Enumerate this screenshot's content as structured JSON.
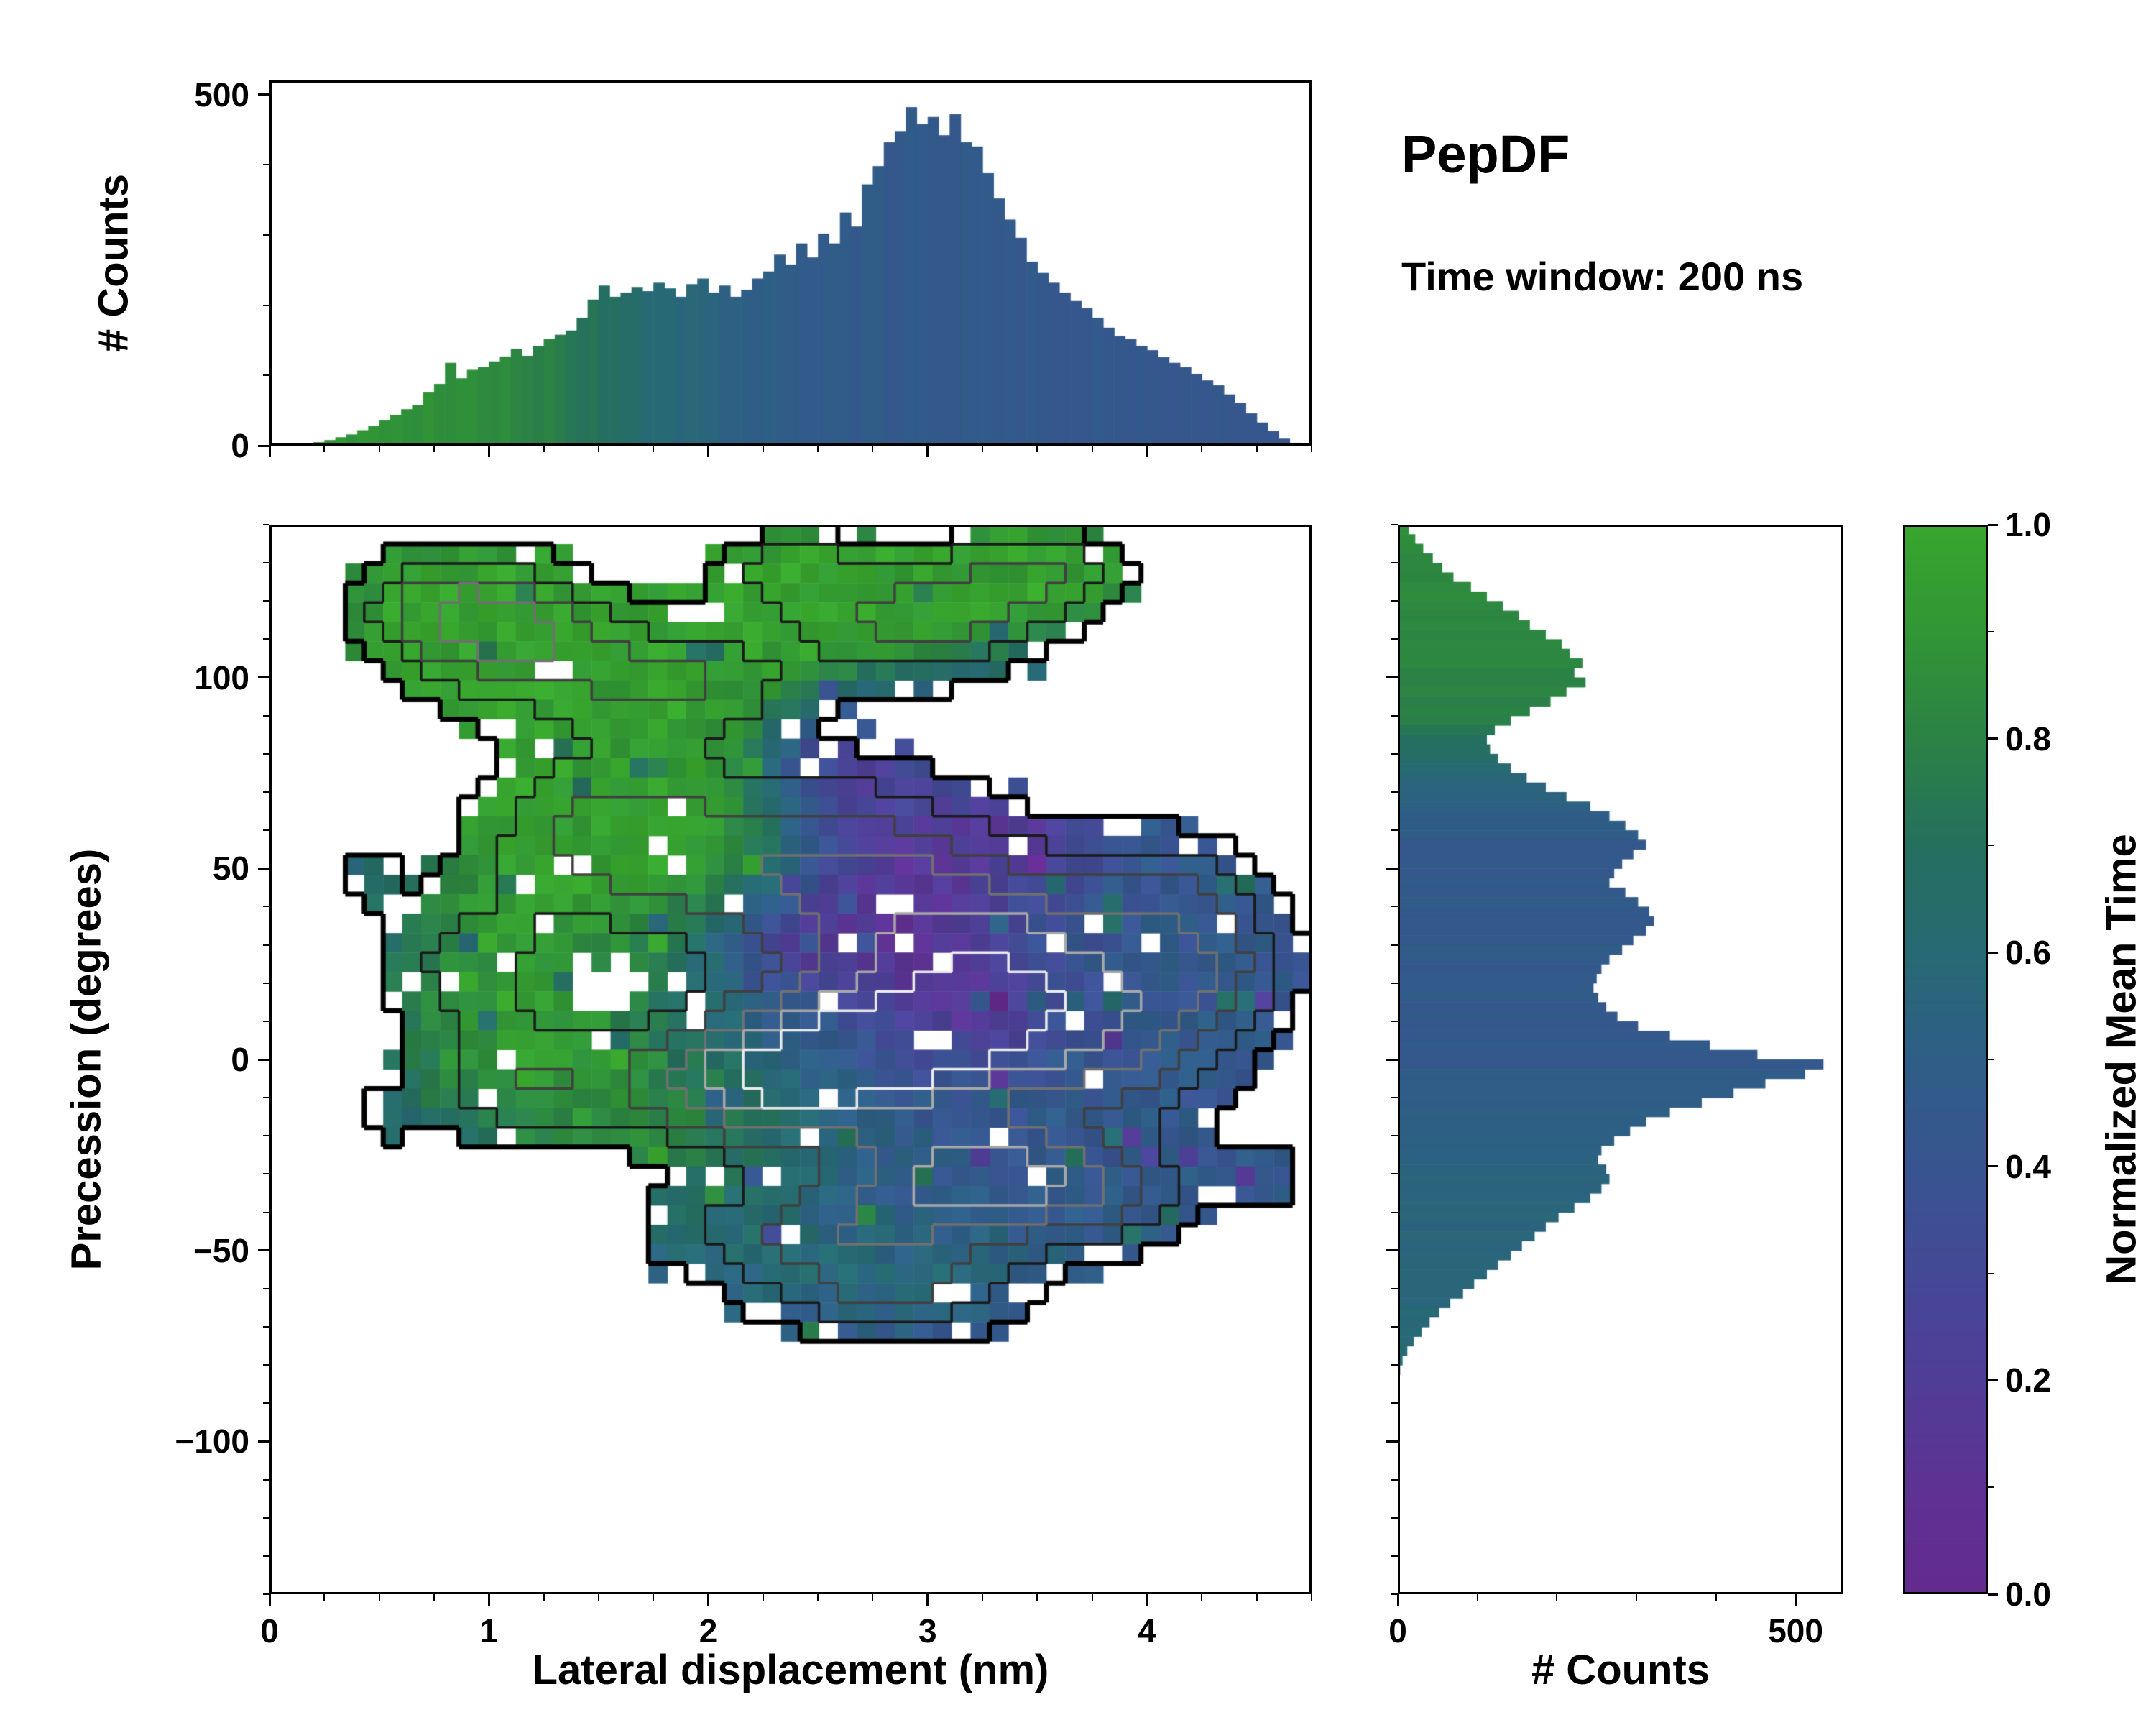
{
  "title": "PepDF",
  "subtitle": "Time window: 200 ns",
  "axes": {
    "main": {
      "xlabel": "Lateral displacement (nm)",
      "ylabel": "Precession (degrees)",
      "xlim": [
        0,
        4.75
      ],
      "ylim": [
        -140,
        140
      ],
      "xticks": [
        0,
        1,
        2,
        3,
        4
      ],
      "xtick_labels": [
        "0",
        "1",
        "2",
        "3",
        "4"
      ],
      "xminor_step": 0.25,
      "yticks": [
        -100,
        -50,
        0,
        50,
        100
      ],
      "ytick_labels": [
        "−100",
        "−50",
        "0",
        "50",
        "100"
      ],
      "yminor_step": 10
    },
    "top": {
      "ylabel": "# Counts",
      "ylim": [
        0,
        520
      ],
      "yticks": [
        0,
        500
      ],
      "ytick_labels": [
        "0",
        "500"
      ],
      "yminor_step": 100
    },
    "right": {
      "xlabel": "# Counts",
      "xlim": [
        0,
        560
      ],
      "xticks": [
        0,
        500
      ],
      "xtick_labels": [
        "0",
        "500"
      ],
      "xminor_step": 100
    },
    "colorbar": {
      "label": "Normalized Mean Time",
      "lim": [
        0,
        1
      ],
      "ticks": [
        0,
        0.2,
        0.4,
        0.6,
        0.8,
        1.0
      ],
      "tick_labels": [
        "0.0",
        "0.2",
        "0.4",
        "0.6",
        "0.8",
        "1.0"
      ],
      "minor_step": 0.1
    }
  },
  "colormap": {
    "stops": [
      [
        0.0,
        "#652a8e"
      ],
      [
        0.12,
        "#5b3494"
      ],
      [
        0.25,
        "#4a4397"
      ],
      [
        0.38,
        "#3a5292"
      ],
      [
        0.5,
        "#2e5e86"
      ],
      [
        0.6,
        "#276a74"
      ],
      [
        0.7,
        "#256f5e"
      ],
      [
        0.8,
        "#2b8245"
      ],
      [
        0.9,
        "#319635"
      ],
      [
        1.0,
        "#38a62d"
      ]
    ]
  },
  "chart_data": {
    "type": "heatmap",
    "title": "PepDF",
    "subtitle": "Time window: 200 ns",
    "xlabel": "Lateral displacement (nm)",
    "ylabel": "Precession (degrees)",
    "color_label": "Normalized Mean Time",
    "xlim": [
      0,
      4.75
    ],
    "ylim": [
      -140,
      140
    ],
    "color_range": [
      0,
      1
    ],
    "grid": {
      "nx": 55,
      "ny": 55
    },
    "support_threshold": 0.17,
    "noise_amp": 0.12,
    "hole_fraction": 0.035,
    "contour_levels": [
      0.17,
      0.35,
      0.55,
      0.75,
      0.95,
      1.15
    ],
    "contour_colors": [
      "#000000",
      "#1a1a1a",
      "#404040",
      "#707070",
      "#a8a8a8",
      "#ebebeb"
    ],
    "contour_widths": [
      7,
      3.5,
      3.5,
      3.5,
      3.5,
      3.5
    ],
    "density_blobs": [
      [
        0.85,
        120,
        0.45,
        14,
        0.55
      ],
      [
        1.15,
        108,
        0.55,
        16,
        0.6
      ],
      [
        1.9,
        98,
        0.5,
        14,
        0.5
      ],
      [
        2.95,
        115,
        0.55,
        16,
        0.62
      ],
      [
        3.5,
        127,
        0.4,
        12,
        0.5
      ],
      [
        2.35,
        128,
        0.35,
        10,
        0.4
      ],
      [
        1.5,
        60,
        0.55,
        24,
        0.55
      ],
      [
        2.5,
        50,
        0.8,
        26,
        0.7
      ],
      [
        3.3,
        28,
        0.7,
        24,
        0.8
      ],
      [
        2.9,
        2,
        0.75,
        20,
        1.0
      ],
      [
        2.2,
        -6,
        0.6,
        18,
        0.85
      ],
      [
        1.15,
        -6,
        0.45,
        16,
        0.5
      ],
      [
        0.9,
        25,
        0.4,
        20,
        0.4
      ],
      [
        3.2,
        -30,
        0.55,
        14,
        0.85
      ],
      [
        2.6,
        -45,
        0.8,
        14,
        0.6
      ],
      [
        3.9,
        8,
        0.5,
        26,
        0.55
      ],
      [
        4.35,
        25,
        0.35,
        18,
        0.4
      ],
      [
        2.85,
        -62,
        0.6,
        12,
        0.45
      ],
      [
        3.8,
        -35,
        0.45,
        14,
        0.45
      ],
      [
        4.1,
        45,
        0.35,
        16,
        0.35
      ],
      [
        0.45,
        48,
        0.15,
        8,
        0.22
      ],
      [
        0.55,
        -15,
        0.15,
        8,
        0.22
      ],
      [
        4.55,
        -30,
        0.2,
        10,
        0.25
      ]
    ],
    "mean_time_base": 0.44,
    "green_field": [
      [
        0.9,
        115,
        1.1,
        40,
        1.0
      ],
      [
        1.7,
        100,
        0.8,
        28,
        0.9
      ],
      [
        2.9,
        120,
        1.0,
        20,
        1.0
      ],
      [
        2.3,
        125,
        0.5,
        14,
        0.8
      ],
      [
        1.3,
        60,
        0.8,
        35,
        0.85
      ],
      [
        1.1,
        5,
        0.8,
        35,
        0.8
      ],
      [
        1.9,
        -20,
        0.7,
        25,
        0.5
      ],
      [
        2.1,
        55,
        0.5,
        22,
        0.5
      ],
      [
        2.6,
        -55,
        1.2,
        16,
        0.25
      ],
      [
        3.6,
        130,
        0.5,
        12,
        0.9
      ]
    ],
    "purple_field": [
      [
        2.8,
        45,
        0.55,
        26,
        1.0
      ],
      [
        2.55,
        80,
        0.35,
        16,
        0.85
      ],
      [
        3.15,
        15,
        0.45,
        18,
        0.7
      ],
      [
        3.45,
        60,
        0.35,
        14,
        0.6
      ],
      [
        2.35,
        30,
        0.3,
        12,
        0.5
      ]
    ],
    "top_histogram": {
      "ylabel": "# Counts",
      "bin_start": 0,
      "bin_width": 0.05,
      "ymax": 520,
      "counts": [
        0,
        0,
        1,
        2,
        5,
        8,
        12,
        16,
        22,
        28,
        36,
        44,
        52,
        58,
        76,
        88,
        118,
        96,
        108,
        112,
        120,
        127,
        138,
        128,
        142,
        152,
        158,
        164,
        182,
        208,
        228,
        212,
        218,
        226,
        220,
        232,
        224,
        212,
        230,
        238,
        218,
        228,
        212,
        222,
        238,
        248,
        272,
        258,
        288,
        268,
        302,
        288,
        332,
        312,
        372,
        398,
        432,
        448,
        482,
        458,
        468,
        442,
        472,
        432,
        426,
        388,
        352,
        322,
        296,
        262,
        246,
        232,
        218,
        206,
        196,
        182,
        168,
        156,
        152,
        142,
        136,
        126,
        118,
        112,
        102,
        93,
        86,
        73,
        61,
        46,
        33,
        21,
        10,
        4
      ]
    },
    "top_color_profile": [
      [
        0,
        0.9
      ],
      [
        0.9,
        0.87
      ],
      [
        1.3,
        0.78
      ],
      [
        1.7,
        0.62
      ],
      [
        2.1,
        0.52
      ],
      [
        2.5,
        0.47
      ],
      [
        3.0,
        0.45
      ],
      [
        4.7,
        0.43
      ]
    ],
    "right_histogram": {
      "xlabel": "# Counts",
      "bin_start": 140,
      "bin_width": -2.5,
      "xmax": 560,
      "counts": [
        14,
        22,
        32,
        44,
        56,
        70,
        92,
        112,
        132,
        152,
        166,
        186,
        206,
        216,
        232,
        222,
        236,
        212,
        192,
        166,
        142,
        122,
        112,
        116,
        126,
        142,
        162,
        186,
        212,
        242,
        266,
        286,
        302,
        312,
        296,
        282,
        272,
        266,
        286,
        302,
        316,
        322,
        312,
        296,
        282,
        266,
        256,
        250,
        246,
        252,
        262,
        276,
        302,
        342,
        392,
        452,
        535,
        512,
        462,
        422,
        382,
        342,
        312,
        292,
        272,
        256,
        252,
        262,
        266,
        256,
        242,
        222,
        202,
        186,
        172,
        156,
        142,
        126,
        112,
        96,
        82,
        66,
        52,
        40,
        30,
        20,
        12,
        6,
        3,
        1
      ]
    },
    "right_color_profile": [
      [
        -85,
        0.6
      ],
      [
        -60,
        0.57
      ],
      [
        -35,
        0.55
      ],
      [
        -20,
        0.5
      ],
      [
        -5,
        0.47
      ],
      [
        5,
        0.44
      ],
      [
        25,
        0.46
      ],
      [
        55,
        0.45
      ],
      [
        72,
        0.55
      ],
      [
        90,
        0.8
      ],
      [
        140,
        0.85
      ]
    ]
  }
}
